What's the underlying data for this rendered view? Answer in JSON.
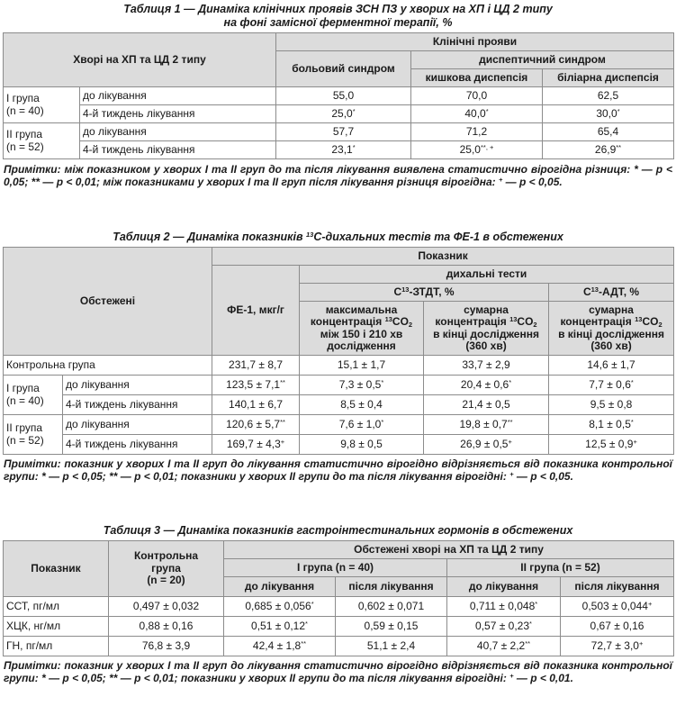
{
  "t1": {
    "caption_l1": "Таблиця 1 — Динаміка клінічних проявів ЗСН ПЗ у хворих на ХП і ЦД 2 типу",
    "caption_l2": "на фоні замісної ферментної терапії, %",
    "h_patients": "Хворі на ХП та ЦД 2 типу",
    "h_clinical": "Клінічні прояви",
    "h_pain": "больовий синдром",
    "h_dyspeptic": "диспептичний синдром",
    "h_intestinal": "кишкова диспепсія",
    "h_biliary": "біліарна диспепсія",
    "groups": [
      {
        "name_l1": "І група",
        "name_l2": "(n = 40)",
        "rows": [
          {
            "label": "до лікування",
            "pain": "55,0",
            "intestinal": "70,0",
            "biliary": "62,5"
          },
          {
            "label": "4-й тиждень лікування",
            "pain": "25,0",
            "pain_sup": "*",
            "intestinal": "40,0",
            "intestinal_sup": "*",
            "biliary": "30,0",
            "biliary_sup": "*"
          }
        ]
      },
      {
        "name_l1": "ІІ група",
        "name_l2": "(n = 52)",
        "rows": [
          {
            "label": "до лікування",
            "pain": "57,7",
            "intestinal": "71,2",
            "biliary": "65,4"
          },
          {
            "label": "4-й тиждень лікування",
            "pain": "23,1",
            "pain_sup": "*",
            "intestinal": "25,0",
            "intestinal_sup": "**, +",
            "biliary": "26,9",
            "biliary_sup": "**"
          }
        ]
      }
    ],
    "note": "Примітки: між показником у хворих І та ІІ груп до та після лікування виявлена статистично вірогідна різниця: * — р < 0,05; ** — р < 0,01; між показниками у хворих І та ІІ груп після лікування різниця вірогідна: ",
    "note_plus": "+",
    "note_tail": " — р < 0,05."
  },
  "t2": {
    "caption_a": "Таблиця 2 — Динаміка показників ",
    "caption_sup": "13",
    "caption_b": "С-дихальних тестів та ФЕ-1 в обстежених",
    "h_examined": "Обстежені",
    "h_indicator": "Показник",
    "h_fe1": "ФЕ-1, мкг/г",
    "h_breath": "дихальні тести",
    "h_ztdt_a": "С",
    "h_ztdt_sup": "13",
    "h_ztdt_b": "-ЗТДТ, %",
    "h_adt_a": "С",
    "h_adt_sup": "13",
    "h_adt_b": "-АДТ, %",
    "h_max_l1": "максимальна",
    "h_max_l2a": "концентрація ",
    "h_max_l2sup": "13",
    "h_max_l2b": "CO",
    "h_max_l2sub": "2",
    "h_max_l3": "між 150 і 210 хв",
    "h_max_l4": "дослідження",
    "h_sum_l1": "сумарна",
    "h_sum_l2a": "концентрація ",
    "h_sum_l2sup": "13",
    "h_sum_l2b": "CO",
    "h_sum_l2sub": "2",
    "h_sum_l3": "в кінці дослідження",
    "h_sum_l4": "(360 хв)",
    "control": {
      "label": "Контрольна група",
      "fe1": "231,7 ± 8,7",
      "max": "15,1 ± 1,7",
      "sum": "33,7 ± 2,9",
      "adt": "14,6 ± 1,7"
    },
    "groups": [
      {
        "name_l1": "І група",
        "name_l2": "(n = 40)",
        "rows": [
          {
            "label": "до лікування",
            "fe1": "123,5 ± 7,1",
            "fe1_sup": "**",
            "max": "7,3 ± 0,5",
            "max_sup": "*",
            "sum": "20,4 ± 0,6",
            "sum_sup": "*",
            "adt": "7,7 ± 0,6",
            "adt_sup": "*"
          },
          {
            "label": "4-й тиждень лікування",
            "fe1": "140,1 ± 6,7",
            "max": "8,5 ± 0,4",
            "sum": "21,4 ± 0,5",
            "adt": "9,5 ± 0,8"
          }
        ]
      },
      {
        "name_l1": "ІІ група",
        "name_l2": "(n = 52)",
        "rows": [
          {
            "label": "до лікування",
            "fe1": "120,6 ± 5,7",
            "fe1_sup": "**",
            "max": "7,6 ± 1,0",
            "max_sup": "*",
            "sum": "19,8 ± 0,7",
            "sum_sup": "**",
            "adt": "8,1 ± 0,5",
            "adt_sup": "*"
          },
          {
            "label": "4-й тиждень лікування",
            "fe1": "169,7 ± 4,3",
            "fe1_sup": "+",
            "max": "9,8 ± 0,5",
            "sum": "26,9 ± 0,5",
            "sum_sup": "+",
            "adt": "12,5 ± 0,9",
            "adt_sup": "+"
          }
        ]
      }
    ],
    "note": "Примітки: показник у хворих І та ІІ груп до лікування статистично вірогідно відрізняється від показника контрольної групи: * — р < 0,05; ** — р < 0,01; показники у хворих ІІ групи до та після лікування вірогідні: ",
    "note_plus": "+",
    "note_tail": " — р < 0,05."
  },
  "t3": {
    "caption": "Таблиця 3 — Динаміка показників гастроінтестинальних гормонів в обстежених",
    "h_indicator": "Показник",
    "h_control_l1": "Контрольна",
    "h_control_l2": "група",
    "h_control_l3": "(n = 20)",
    "h_examined": "Обстежені хворі на ХП та ЦД 2 типу",
    "h_g1": "І група (n = 40)",
    "h_g2": "ІІ група (n = 52)",
    "h_before": "до лікування",
    "h_after": "після лікування",
    "rows": [
      {
        "label": "ССТ, пг/мл",
        "control": "0,497 ± 0,032",
        "g1b": "0,685 ± 0,056",
        "g1b_sup": "*",
        "g1a": "0,602 ± 0,071",
        "g2b": "0,711 ± 0,048",
        "g2b_sup": "*",
        "g2a": "0,503 ± 0,044",
        "g2a_sup": "+"
      },
      {
        "label": "ХЦК, нг/мл",
        "control": "0,88 ± 0,16",
        "g1b": "0,51 ± 0,12",
        "g1b_sup": "*",
        "g1a": "0,59 ± 0,15",
        "g2b": "0,57 ± 0,23",
        "g2b_sup": "*",
        "g2a": "0,67 ± 0,16"
      },
      {
        "label": "ГН, пг/мл",
        "control": "76,8 ± 3,9",
        "g1b": "42,4 ± 1,8",
        "g1b_sup": "**",
        "g1a": "51,1 ± 2,4",
        "g2b": "40,7 ± 2,2",
        "g2b_sup": "**",
        "g2a": "72,7 ± 3,0",
        "g2a_sup": "+"
      }
    ],
    "note": "Примітки: показник у хворих І та ІІ груп до лікування статистично вірогідно відрізняється від показника контрольної групи: * — р < 0,05; ** — р < 0,01; показники у хворих ІІ групи до та після лікування вірогідні: ",
    "note_plus": "+",
    "note_tail": " — р < 0,01."
  }
}
